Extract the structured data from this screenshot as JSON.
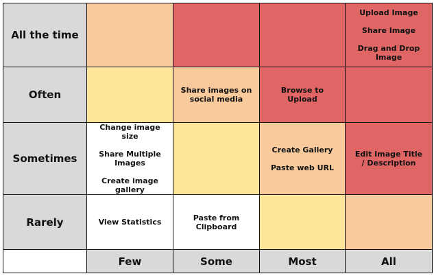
{
  "colors": {
    "high": "#e06666",
    "mid": "#f9cb9c",
    "low": "#ffe599",
    "none": "#ffffff",
    "header": "#d9d9d9"
  },
  "rows": [
    "All the time",
    "Often",
    "Sometimes",
    "Rarely"
  ],
  "columns": [
    "Few",
    "Some",
    "Most",
    "All"
  ],
  "cells": [
    [
      {
        "level": "mid",
        "items": []
      },
      {
        "level": "high",
        "items": []
      },
      {
        "level": "high",
        "items": []
      },
      {
        "level": "high",
        "items": [
          "Upload Image",
          "Share Image",
          "Drag and Drop Image"
        ]
      }
    ],
    [
      {
        "level": "low",
        "items": []
      },
      {
        "level": "mid",
        "items": [
          "Share images on social media"
        ]
      },
      {
        "level": "high",
        "items": [
          "Browse to Upload"
        ]
      },
      {
        "level": "high",
        "items": []
      }
    ],
    [
      {
        "level": "none",
        "items": [
          "Change image size",
          "Share Multiple Images",
          "Create image gallery"
        ]
      },
      {
        "level": "low",
        "items": []
      },
      {
        "level": "mid",
        "items": [
          "Create Gallery",
          "Paste web URL"
        ]
      },
      {
        "level": "high",
        "items": [
          "Edit Image Title / Description"
        ]
      }
    ],
    [
      {
        "level": "none",
        "items": [
          "View Statistics"
        ]
      },
      {
        "level": "none",
        "items": [
          "Paste from Clipboard"
        ]
      },
      {
        "level": "low",
        "items": []
      },
      {
        "level": "mid",
        "items": []
      }
    ]
  ]
}
